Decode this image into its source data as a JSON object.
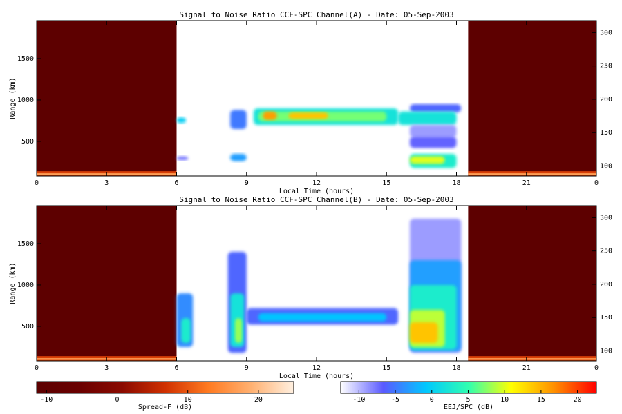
{
  "chart_data": [
    {
      "type": "heatmap",
      "title": "Signal to Noise Ratio CCF-SPC Channel(A) - Date: 05-Sep-2003",
      "xlabel": "Local Time (hours)",
      "ylabel": "Range (km)",
      "xlim": [
        0,
        24
      ],
      "xticks": [
        0,
        3,
        6,
        9,
        12,
        15,
        18,
        21,
        {
          "value": 24,
          "label": "0"
        }
      ],
      "ylim": [
        83,
        1958
      ],
      "yticks": [
        500,
        1000,
        1500
      ],
      "y2lim": [
        85,
        318
      ],
      "y2ticks": [
        100,
        150,
        200,
        250,
        300
      ],
      "cells": [
        {
          "x": [
            0,
            6
          ],
          "y": [
            83,
            1958
          ],
          "value": -11,
          "scale": 0
        },
        {
          "x": [
            18.5,
            24
          ],
          "y": [
            83,
            1958
          ],
          "value": -11,
          "scale": 0
        },
        {
          "x": [
            0,
            6
          ],
          "y": [
            83,
            140
          ],
          "value": 8,
          "scale": 0
        },
        {
          "x": [
            18.5,
            24
          ],
          "y": [
            83,
            140
          ],
          "value": 8,
          "scale": 0
        },
        {
          "x": [
            0,
            6
          ],
          "y": [
            95,
            115
          ],
          "value": 17,
          "scale": 0
        },
        {
          "x": [
            18.5,
            24
          ],
          "y": [
            95,
            115
          ],
          "value": 17,
          "scale": 0
        },
        {
          "x": [
            6,
            6.4
          ],
          "y": [
            720,
            790
          ],
          "value": 0,
          "scale": 1
        },
        {
          "x": [
            6,
            6.5
          ],
          "y": [
            270,
            320
          ],
          "value": -8,
          "scale": 1
        },
        {
          "x": [
            8.3,
            9
          ],
          "y": [
            650,
            880
          ],
          "value": -5,
          "scale": 1
        },
        {
          "x": [
            8.3,
            9
          ],
          "y": [
            260,
            350
          ],
          "value": -3,
          "scale": 1
        },
        {
          "x": [
            9.3,
            15.5
          ],
          "y": [
            700,
            900
          ],
          "value": 2,
          "scale": 1
        },
        {
          "x": [
            9.5,
            15
          ],
          "y": [
            740,
            860
          ],
          "value": 7,
          "scale": 1
        },
        {
          "x": [
            9.7,
            10.3
          ],
          "y": [
            760,
            860
          ],
          "value": 16,
          "scale": 1
        },
        {
          "x": [
            10.8,
            12.5
          ],
          "y": [
            770,
            850
          ],
          "value": 14,
          "scale": 1
        },
        {
          "x": [
            16,
            18.2
          ],
          "y": [
            850,
            950
          ],
          "value": -6,
          "scale": 1
        },
        {
          "x": [
            15.5,
            18
          ],
          "y": [
            700,
            860
          ],
          "value": 2,
          "scale": 1
        },
        {
          "x": [
            16,
            18
          ],
          "y": [
            550,
            700
          ],
          "value": -9,
          "scale": 1
        },
        {
          "x": [
            16,
            18
          ],
          "y": [
            420,
            560
          ],
          "value": -7,
          "scale": 1
        },
        {
          "x": [
            16,
            18
          ],
          "y": [
            180,
            350
          ],
          "value": 3,
          "scale": 1
        },
        {
          "x": [
            16,
            17.5
          ],
          "y": [
            230,
            320
          ],
          "value": 10,
          "scale": 1
        }
      ]
    },
    {
      "type": "heatmap",
      "title": "Signal to Noise Ratio CCF-SPC Channel(B) - Date: 05-Sep-2003",
      "xlabel": "Local Time (hours)",
      "ylabel": "Range (km)",
      "xlim": [
        0,
        24
      ],
      "xticks": [
        0,
        3,
        6,
        9,
        12,
        15,
        18,
        21,
        {
          "value": 24,
          "label": "0"
        }
      ],
      "ylim": [
        83,
        1958
      ],
      "yticks": [
        500,
        1000,
        1500
      ],
      "y2lim": [
        85,
        318
      ],
      "y2ticks": [
        100,
        150,
        200,
        250,
        300
      ],
      "cells": [
        {
          "x": [
            0,
            6
          ],
          "y": [
            83,
            1958
          ],
          "value": -11,
          "scale": 0
        },
        {
          "x": [
            18.5,
            24
          ],
          "y": [
            83,
            1958
          ],
          "value": -11,
          "scale": 0
        },
        {
          "x": [
            0,
            6
          ],
          "y": [
            83,
            140
          ],
          "value": 8,
          "scale": 0
        },
        {
          "x": [
            18.5,
            24
          ],
          "y": [
            83,
            140
          ],
          "value": 8,
          "scale": 0
        },
        {
          "x": [
            0,
            6
          ],
          "y": [
            95,
            115
          ],
          "value": 17,
          "scale": 0
        },
        {
          "x": [
            18.5,
            24
          ],
          "y": [
            95,
            115
          ],
          "value": 17,
          "scale": 0
        },
        {
          "x": [
            6,
            6.7
          ],
          "y": [
            250,
            900
          ],
          "value": -4,
          "scale": 1
        },
        {
          "x": [
            6.2,
            6.6
          ],
          "y": [
            300,
            600
          ],
          "value": 3,
          "scale": 1
        },
        {
          "x": [
            8.2,
            9
          ],
          "y": [
            180,
            1400
          ],
          "value": -6,
          "scale": 1
        },
        {
          "x": [
            8.3,
            8.9
          ],
          "y": [
            250,
            900
          ],
          "value": 2,
          "scale": 1
        },
        {
          "x": [
            8.5,
            8.8
          ],
          "y": [
            300,
            600
          ],
          "value": 8,
          "scale": 1
        },
        {
          "x": [
            9,
            15.5
          ],
          "y": [
            520,
            720
          ],
          "value": -6,
          "scale": 1
        },
        {
          "x": [
            9.5,
            15
          ],
          "y": [
            560,
            660
          ],
          "value": -1,
          "scale": 1
        },
        {
          "x": [
            16,
            18.2
          ],
          "y": [
            180,
            1800
          ],
          "value": -9,
          "scale": 1
        },
        {
          "x": [
            16,
            18.2
          ],
          "y": [
            200,
            1300
          ],
          "value": -3,
          "scale": 1
        },
        {
          "x": [
            16,
            18
          ],
          "y": [
            220,
            1000
          ],
          "value": 3,
          "scale": 1
        },
        {
          "x": [
            16,
            17.5
          ],
          "y": [
            250,
            700
          ],
          "value": 9,
          "scale": 1
        },
        {
          "x": [
            16,
            17.2
          ],
          "y": [
            300,
            550
          ],
          "value": 14,
          "scale": 1
        }
      ]
    }
  ],
  "colorbars": [
    {
      "label": "Spread-F (dB)",
      "lim": [
        -11.4,
        25
      ],
      "ticks": [
        -10,
        0,
        10,
        20
      ],
      "colors": [
        "#5c0000",
        "#6a0000",
        "#8a0a00",
        "#d03000",
        "#ff7a20",
        "#ffb070",
        "#fff0e0"
      ]
    },
    {
      "label": "EEJ/SPC (dB)",
      "lim": [
        -12.5,
        22.6
      ],
      "ticks": [
        -10,
        -5,
        0,
        5,
        10,
        15,
        20
      ],
      "colors": [
        "#ffffff",
        "#5a5aff",
        "#00c8ff",
        "#30ffb0",
        "#ffff00",
        "#ff9000",
        "#ff0000"
      ]
    }
  ]
}
